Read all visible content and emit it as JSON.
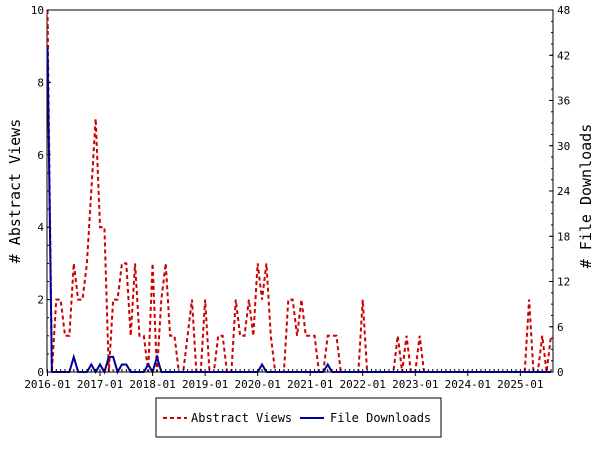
{
  "chart_data": {
    "type": "line",
    "x": [
      "2016-01",
      "2016-02",
      "2016-03",
      "2016-04",
      "2016-05",
      "2016-06",
      "2016-07",
      "2016-08",
      "2016-09",
      "2016-10",
      "2016-11",
      "2016-12",
      "2017-01",
      "2017-02",
      "2017-03",
      "2017-04",
      "2017-05",
      "2017-06",
      "2017-07",
      "2017-08",
      "2017-09",
      "2017-10",
      "2017-11",
      "2017-12",
      "2018-01",
      "2018-02",
      "2018-03",
      "2018-04",
      "2018-05",
      "2018-06",
      "2018-07",
      "2018-08",
      "2018-09",
      "2018-10",
      "2018-11",
      "2018-12",
      "2019-01",
      "2019-02",
      "2019-03",
      "2019-04",
      "2019-05",
      "2019-06",
      "2019-07",
      "2019-08",
      "2019-09",
      "2019-10",
      "2019-11",
      "2019-12",
      "2020-01",
      "2020-02",
      "2020-03",
      "2020-04",
      "2020-05",
      "2020-06",
      "2020-07",
      "2020-08",
      "2020-09",
      "2020-10",
      "2020-11",
      "2020-12",
      "2021-01",
      "2021-02",
      "2021-03",
      "2021-04",
      "2021-05",
      "2021-06",
      "2021-07",
      "2021-08",
      "2021-09",
      "2021-10",
      "2021-11",
      "2021-12",
      "2022-01",
      "2022-02",
      "2022-03",
      "2022-04",
      "2022-05",
      "2022-06",
      "2022-07",
      "2022-08",
      "2022-09",
      "2022-10",
      "2022-11",
      "2022-12",
      "2023-01",
      "2023-02",
      "2023-03",
      "2023-04",
      "2023-05",
      "2023-06",
      "2023-07",
      "2023-08",
      "2023-09",
      "2023-10",
      "2023-11",
      "2023-12",
      "2024-01",
      "2024-02",
      "2024-03",
      "2024-04",
      "2024-05",
      "2024-06",
      "2024-07",
      "2024-08",
      "2024-09",
      "2024-10",
      "2024-11",
      "2024-12",
      "2025-01",
      "2025-02",
      "2025-03",
      "2025-04",
      "2025-05",
      "2025-06",
      "2025-07",
      "2025-08"
    ],
    "series": [
      {
        "name": "Abstract Views",
        "axis": "left",
        "color": "#cc0000",
        "dash": "dashed",
        "values": [
          10,
          0,
          2,
          2,
          1,
          1,
          3,
          2,
          2,
          3,
          5,
          7,
          4,
          4,
          0,
          2,
          2,
          3,
          3,
          1,
          3,
          1,
          1,
          0,
          3,
          0,
          2,
          3,
          1,
          1,
          0,
          0,
          1,
          2,
          0,
          0,
          2,
          0,
          0,
          1,
          1,
          0,
          0,
          2,
          1,
          1,
          2,
          1,
          3,
          2,
          3,
          1,
          0,
          0,
          0,
          2,
          2,
          1,
          2,
          1,
          1,
          1,
          0,
          0,
          1,
          1,
          1,
          0,
          0,
          0,
          0,
          0,
          2,
          0,
          0,
          0,
          0,
          0,
          0,
          0,
          1,
          0,
          1,
          0,
          0,
          1,
          0,
          0,
          0,
          0,
          0,
          0,
          0,
          0,
          0,
          0,
          0,
          0,
          0,
          0,
          0,
          0,
          0,
          0,
          0,
          0,
          0,
          0,
          0,
          0,
          2,
          0,
          0,
          1,
          0,
          1
        ]
      },
      {
        "name": "File Downloads",
        "axis": "right",
        "color": "#000099",
        "dash": "solid",
        "values": [
          43,
          0,
          0,
          0,
          0,
          0,
          2,
          0,
          0,
          0,
          1,
          0,
          1,
          0,
          2,
          2,
          0,
          1,
          1,
          0,
          0,
          0,
          0,
          1,
          0,
          2,
          0,
          0,
          0,
          0,
          0,
          0,
          0,
          0,
          0,
          0,
          0,
          0,
          0,
          0,
          0,
          0,
          0,
          0,
          0,
          0,
          0,
          0,
          0,
          1,
          0,
          0,
          0,
          0,
          0,
          0,
          0,
          0,
          0,
          0,
          0,
          0,
          0,
          0,
          1,
          0,
          0,
          0,
          0,
          0,
          0,
          0,
          0,
          0,
          0,
          0,
          0,
          0,
          0,
          0,
          0,
          0,
          0,
          0,
          0,
          0,
          0,
          0,
          0,
          0,
          0,
          0,
          0,
          0,
          0,
          0,
          0,
          0,
          0,
          0,
          0,
          0,
          0,
          0,
          0,
          0,
          0,
          0,
          0,
          0,
          0,
          0,
          0,
          0,
          0,
          0
        ]
      }
    ],
    "x_tick_labels": [
      "2016-01",
      "2017-01",
      "2018-01",
      "2019-01",
      "2020-01",
      "2021-01",
      "2022-01",
      "2023-01",
      "2024-01",
      "2025-01"
    ],
    "y_left": {
      "label": "# Abstract Views",
      "ylim": [
        0,
        10
      ],
      "ticks": [
        "0",
        "2",
        "4",
        "6",
        "8",
        "10"
      ]
    },
    "y_right": {
      "label": "# File Downloads",
      "ylim": [
        0,
        48
      ],
      "ticks": [
        "0",
        "6",
        "12",
        "18",
        "24",
        "30",
        "36",
        "42",
        "48"
      ]
    },
    "grid": false,
    "legend_position": "bottom-center"
  },
  "legend": {
    "abstract_views": "Abstract Views",
    "file_downloads": "File Downloads"
  }
}
